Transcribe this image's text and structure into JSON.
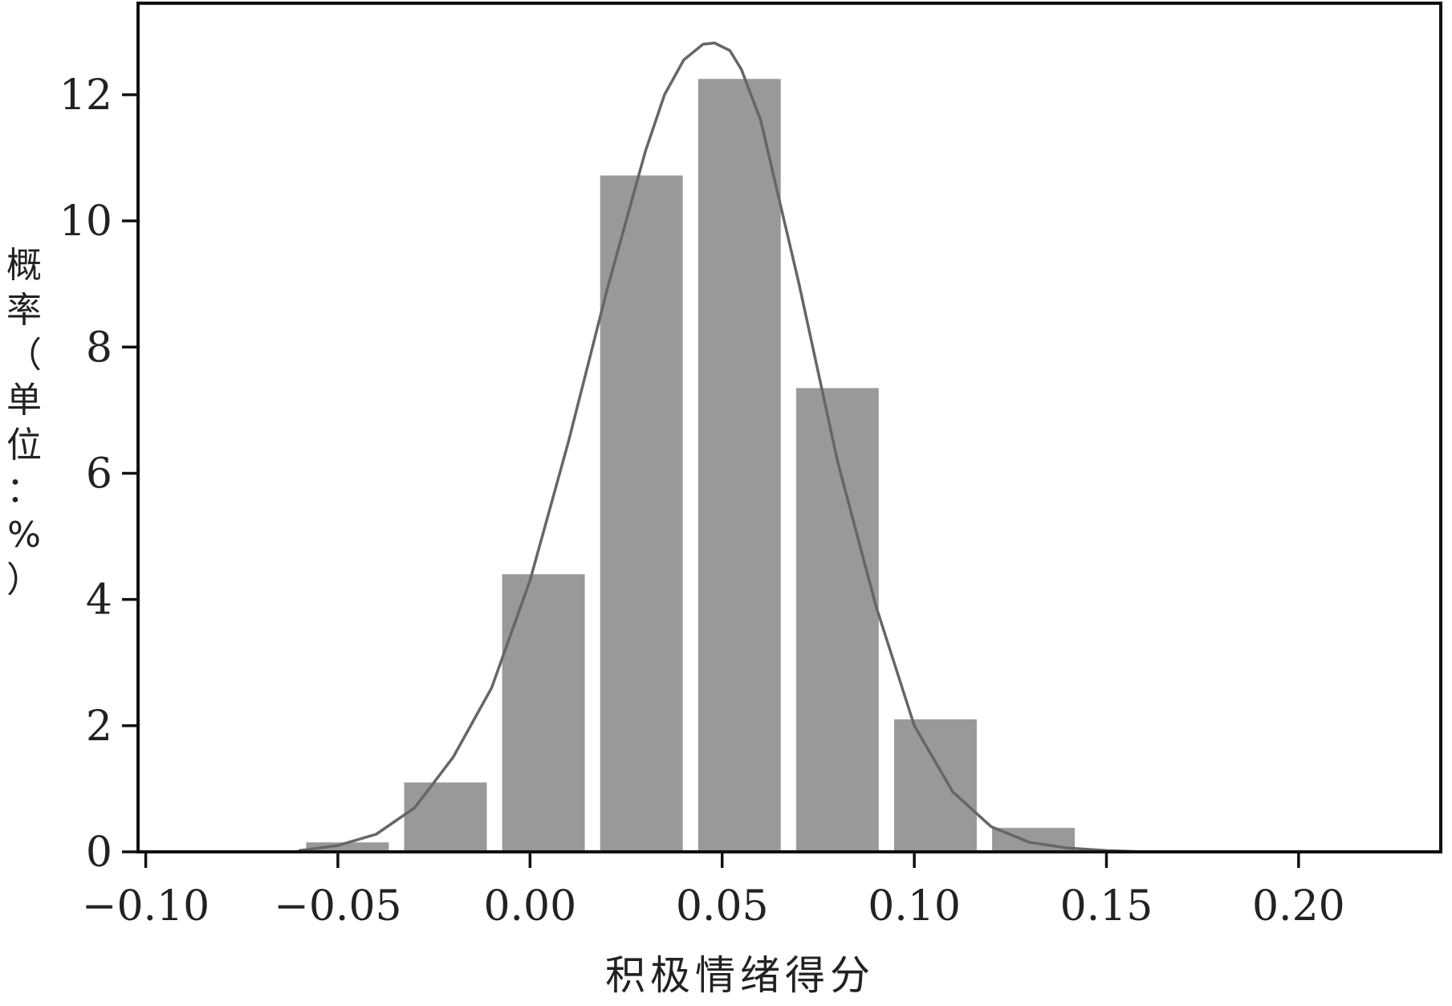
{
  "chart_data": {
    "type": "bar",
    "title": "",
    "xlabel": "积极情绪得分",
    "ylabel": "概率（单位：%）",
    "xlim": [
      -0.102,
      0.237
    ],
    "ylim": [
      0,
      13.45
    ],
    "x_ticks": [
      -0.1,
      -0.05,
      0.0,
      0.05,
      0.1,
      0.15,
      0.2
    ],
    "x_tick_labels": [
      "−0.10",
      "−0.05",
      "0.00",
      "0.05",
      "0.10",
      "0.15",
      "0.20"
    ],
    "y_ticks": [
      0,
      2,
      4,
      6,
      8,
      10,
      12
    ],
    "y_tick_labels": [
      "0",
      "2",
      "4",
      "6",
      "8",
      "10",
      "12"
    ],
    "grid": false,
    "legend": "none",
    "bar_width": 0.0215,
    "bars": [
      {
        "x": -0.0475,
        "value": 0.15
      },
      {
        "x": -0.022,
        "value": 1.1
      },
      {
        "x": 0.0035,
        "value": 4.4
      },
      {
        "x": 0.029,
        "value": 10.72
      },
      {
        "x": 0.0545,
        "value": 12.25
      },
      {
        "x": 0.08,
        "value": 7.35
      },
      {
        "x": 0.1055,
        "value": 2.1
      },
      {
        "x": 0.131,
        "value": 0.38
      }
    ],
    "density_curve": {
      "x": [
        -0.06,
        -0.05,
        -0.04,
        -0.03,
        -0.02,
        -0.01,
        0.0,
        0.01,
        0.02,
        0.03,
        0.035,
        0.04,
        0.045,
        0.048,
        0.052,
        0.055,
        0.06,
        0.065,
        0.07,
        0.08,
        0.09,
        0.1,
        0.11,
        0.12,
        0.13,
        0.14,
        0.15,
        0.16
      ],
      "y": [
        0.02,
        0.1,
        0.28,
        0.7,
        1.5,
        2.6,
        4.3,
        6.5,
        8.9,
        11.1,
        12.0,
        12.55,
        12.8,
        12.82,
        12.7,
        12.4,
        11.6,
        10.3,
        9.0,
        6.2,
        3.9,
        2.0,
        0.95,
        0.4,
        0.15,
        0.06,
        0.02,
        0.0
      ]
    },
    "colors": {
      "bar": "#999999",
      "curve": "#666666",
      "axis": "#111111"
    }
  }
}
